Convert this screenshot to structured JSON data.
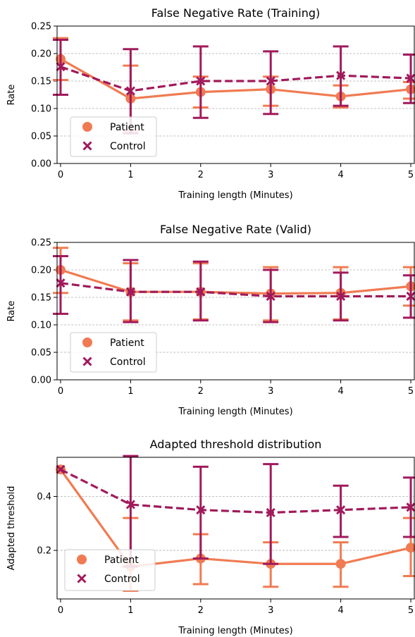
{
  "colors": {
    "patient": "#f07b52",
    "control": "#a11a5b",
    "grid": "#b0b0b0",
    "legend_border": "#cccccc"
  },
  "chart_data": [
    {
      "type": "line",
      "title": "False Negative Rate (Training)",
      "xlabel": "Training length (Minutes)",
      "ylabel": "Rate",
      "x": [
        0,
        1,
        2,
        3,
        4,
        5
      ],
      "xticks": [
        "0",
        "1",
        "2",
        "3",
        "4",
        "5"
      ],
      "yticks": [
        "0.00",
        "0.05",
        "0.10",
        "0.15",
        "0.20",
        "0.25"
      ],
      "ylim": [
        0,
        0.25
      ],
      "xlim": [
        -0.05,
        5.05
      ],
      "grid": "horizontal dashed",
      "legend_position": "lower-left",
      "series": [
        {
          "name": "Patient",
          "marker": "circle",
          "line": "solid",
          "values": [
            0.19,
            0.118,
            0.13,
            0.135,
            0.122,
            0.135
          ],
          "err_low": [
            0.152,
            0.06,
            0.102,
            0.105,
            0.102,
            0.118
          ],
          "err_high": [
            0.228,
            0.178,
            0.158,
            0.158,
            0.142,
            0.148
          ]
        },
        {
          "name": "Control",
          "marker": "x",
          "line": "dashed",
          "values": [
            0.176,
            0.132,
            0.15,
            0.15,
            0.16,
            0.155
          ],
          "err_low": [
            0.125,
            0.055,
            0.083,
            0.09,
            0.105,
            0.11
          ],
          "err_high": [
            0.225,
            0.208,
            0.213,
            0.204,
            0.213,
            0.198
          ]
        }
      ]
    },
    {
      "type": "line",
      "title": "False Negative Rate (Valid)",
      "xlabel": "Training length (Minutes)",
      "ylabel": "Rate",
      "x": [
        0,
        1,
        2,
        3,
        4,
        5
      ],
      "xticks": [
        "0",
        "1",
        "2",
        "3",
        "4",
        "5"
      ],
      "yticks": [
        "0.00",
        "0.05",
        "0.10",
        "0.15",
        "0.20",
        "0.25"
      ],
      "ylim": [
        0,
        0.25
      ],
      "xlim": [
        -0.05,
        5.05
      ],
      "grid": "horizontal dashed",
      "legend_position": "lower-left",
      "series": [
        {
          "name": "Patient",
          "marker": "circle",
          "line": "solid",
          "values": [
            0.2,
            0.16,
            0.16,
            0.157,
            0.158,
            0.17
          ],
          "err_low": [
            0.158,
            0.108,
            0.11,
            0.108,
            0.11,
            0.135
          ],
          "err_high": [
            0.24,
            0.212,
            0.212,
            0.205,
            0.205,
            0.205
          ]
        },
        {
          "name": "Control",
          "marker": "x",
          "line": "dashed",
          "values": [
            0.176,
            0.16,
            0.16,
            0.152,
            0.152,
            0.152
          ],
          "err_low": [
            0.12,
            0.105,
            0.108,
            0.105,
            0.108,
            0.113
          ],
          "err_high": [
            0.225,
            0.218,
            0.215,
            0.2,
            0.195,
            0.19
          ]
        }
      ]
    },
    {
      "type": "line",
      "title": "Adapted threshold distribution",
      "xlabel": "Training length (Minutes)",
      "ylabel": "Adapted threshold",
      "x": [
        0,
        1,
        2,
        3,
        4,
        5
      ],
      "xticks": [
        "0",
        "1",
        "2",
        "3",
        "4",
        "5"
      ],
      "yticks": [
        "0.2",
        "0.4"
      ],
      "ylim": [
        0.02,
        0.545
      ],
      "xlim": [
        -0.05,
        5.05
      ],
      "grid": "horizontal dashed",
      "legend_position": "lower-left",
      "series": [
        {
          "name": "Patient",
          "marker": "circle",
          "line": "solid",
          "values": [
            0.5,
            0.14,
            0.17,
            0.15,
            0.15,
            0.21
          ],
          "err_low": [
            0.5,
            0.05,
            0.075,
            0.065,
            0.065,
            0.105
          ],
          "err_high": [
            0.5,
            0.32,
            0.26,
            0.23,
            0.23,
            0.32
          ]
        },
        {
          "name": "Control",
          "marker": "x",
          "line": "dashed",
          "values": [
            0.5,
            0.37,
            0.35,
            0.34,
            0.35,
            0.36
          ],
          "err_low": [
            0.5,
            0.14,
            0.17,
            0.15,
            0.25,
            0.25
          ],
          "err_high": [
            0.5,
            0.55,
            0.51,
            0.52,
            0.44,
            0.47
          ]
        }
      ]
    }
  ]
}
